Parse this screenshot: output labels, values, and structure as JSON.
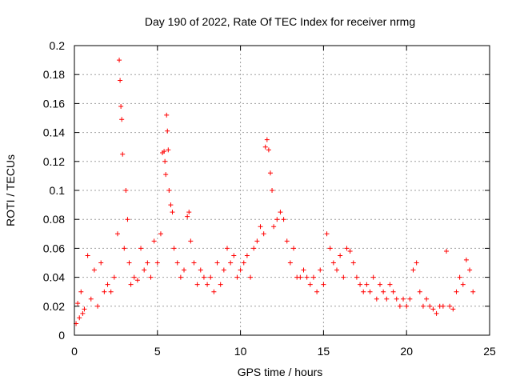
{
  "chart_data": {
    "type": "scatter",
    "title": "Day 190 of 2022, Rate Of TEC Index for receiver nrmg",
    "xlabel": "GPS time / hours",
    "ylabel": "ROTI / TECUs",
    "xlim": [
      0,
      25
    ],
    "ylim": [
      0,
      0.2
    ],
    "x_ticks": [
      0,
      5,
      10,
      15,
      20,
      25
    ],
    "y_ticks": [
      0,
      0.02,
      0.04,
      0.06,
      0.08,
      0.1,
      0.12,
      0.14,
      0.16,
      0.18,
      0.2
    ],
    "x_tick_labels": [
      "0",
      "5",
      "10",
      "15",
      "20",
      "25"
    ],
    "y_tick_labels": [
      "0",
      "0.02",
      "0.04",
      "0.06",
      "0.08",
      "0.1",
      "0.12",
      "0.14",
      "0.16",
      "0.18",
      "0.2"
    ],
    "grid": true,
    "marker": "plus",
    "color": "#ff0000",
    "series": [
      {
        "x": [
          0.1,
          0.2,
          0.3,
          0.4,
          0.5,
          0.6,
          0.8,
          1.0,
          1.2,
          1.4,
          1.6,
          1.8,
          2.0,
          2.2,
          2.4,
          2.6,
          2.7,
          2.75,
          2.8,
          2.85,
          2.9,
          3.0,
          3.1,
          3.2,
          3.3,
          3.4,
          3.6,
          3.8,
          4.0,
          4.2,
          4.4,
          4.6,
          4.8,
          5.0,
          5.2,
          5.3,
          5.4,
          5.45,
          5.5,
          5.55,
          5.6,
          5.65,
          5.7,
          5.8,
          5.9,
          6.0,
          6.2,
          6.4,
          6.6,
          6.8,
          6.9,
          7.0,
          7.2,
          7.4,
          7.6,
          7.8,
          8.0,
          8.2,
          8.4,
          8.6,
          8.8,
          9.0,
          9.2,
          9.4,
          9.6,
          9.8,
          10.0,
          10.2,
          10.4,
          10.6,
          10.8,
          11.0,
          11.2,
          11.4,
          11.5,
          11.6,
          11.7,
          11.8,
          11.9,
          12.0,
          12.2,
          12.4,
          12.6,
          12.8,
          13.0,
          13.2,
          13.4,
          13.6,
          13.8,
          14.0,
          14.2,
          14.4,
          14.6,
          14.8,
          15.0,
          15.2,
          15.4,
          15.6,
          15.8,
          16.0,
          16.2,
          16.4,
          16.6,
          16.8,
          17.0,
          17.2,
          17.4,
          17.6,
          17.8,
          18.0,
          18.2,
          18.4,
          18.6,
          18.8,
          19.0,
          19.2,
          19.4,
          19.6,
          19.8,
          20.0,
          20.2,
          20.4,
          20.6,
          20.8,
          21.0,
          21.2,
          21.4,
          21.6,
          21.8,
          22.0,
          22.2,
          22.4,
          22.6,
          22.8,
          23.0,
          23.2,
          23.4,
          23.6,
          23.8,
          24.0
        ],
        "y": [
          0.008,
          0.022,
          0.012,
          0.03,
          0.015,
          0.018,
          0.055,
          0.025,
          0.045,
          0.02,
          0.05,
          0.03,
          0.035,
          0.03,
          0.04,
          0.07,
          0.19,
          0.176,
          0.158,
          0.149,
          0.125,
          0.06,
          0.1,
          0.08,
          0.05,
          0.035,
          0.04,
          0.038,
          0.06,
          0.045,
          0.05,
          0.04,
          0.065,
          0.05,
          0.07,
          0.126,
          0.127,
          0.12,
          0.111,
          0.152,
          0.141,
          0.128,
          0.1,
          0.09,
          0.085,
          0.06,
          0.05,
          0.04,
          0.045,
          0.082,
          0.085,
          0.065,
          0.05,
          0.035,
          0.045,
          0.04,
          0.035,
          0.04,
          0.03,
          0.05,
          0.035,
          0.045,
          0.06,
          0.05,
          0.055,
          0.04,
          0.045,
          0.05,
          0.055,
          0.04,
          0.06,
          0.065,
          0.075,
          0.07,
          0.13,
          0.135,
          0.128,
          0.112,
          0.1,
          0.075,
          0.08,
          0.085,
          0.08,
          0.065,
          0.05,
          0.06,
          0.04,
          0.04,
          0.045,
          0.04,
          0.035,
          0.04,
          0.03,
          0.045,
          0.035,
          0.07,
          0.06,
          0.05,
          0.045,
          0.055,
          0.04,
          0.06,
          0.058,
          0.05,
          0.04,
          0.035,
          0.03,
          0.035,
          0.03,
          0.04,
          0.025,
          0.035,
          0.03,
          0.025,
          0.035,
          0.03,
          0.025,
          0.02,
          0.025,
          0.02,
          0.025,
          0.045,
          0.05,
          0.03,
          0.02,
          0.025,
          0.02,
          0.018,
          0.015,
          0.02,
          0.02,
          0.058,
          0.02,
          0.018,
          0.03,
          0.04,
          0.035,
          0.052,
          0.045,
          0.03
        ]
      }
    ]
  }
}
